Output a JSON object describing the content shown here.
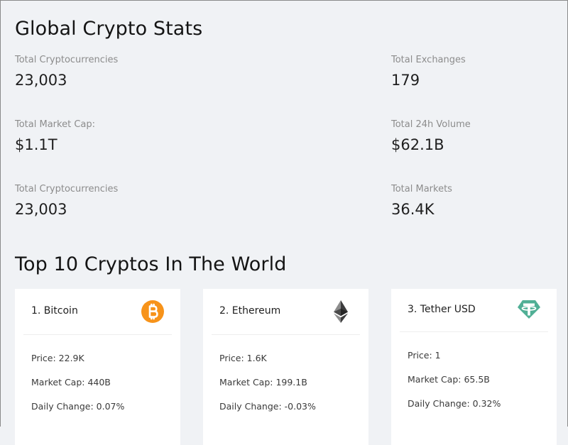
{
  "global": {
    "title": "Global Crypto Stats",
    "stats": [
      {
        "label": "Total Cryptocurrencies",
        "value": "23,003"
      },
      {
        "label": "Total Exchanges",
        "value": "179"
      },
      {
        "label": "Total Market Cap:",
        "value": "$1.1T"
      },
      {
        "label": "Total 24h Volume",
        "value": "$62.1B"
      },
      {
        "label": "Total Cryptocurrencies",
        "value": "23,003"
      },
      {
        "label": "Total Markets",
        "value": "36.4K"
      }
    ]
  },
  "top": {
    "title": "Top 10 Cryptos In The World",
    "cards": [
      {
        "name": "1. Bitcoin",
        "icon": "bitcoin-icon",
        "icon_color": "#f7931a",
        "price": "Price: 22.9K",
        "market_cap": "Market Cap: 440B",
        "daily_change": "Daily Change: 0.07%"
      },
      {
        "name": "2. Ethereum",
        "icon": "ethereum-icon",
        "icon_color": "#343434",
        "price": "Price: 1.6K",
        "market_cap": "Market Cap: 199.1B",
        "daily_change": "Daily Change: -0.03%"
      },
      {
        "name": "3. Tether USD",
        "icon": "tether-icon",
        "icon_color": "#50af95",
        "price": "Price: 1",
        "market_cap": "Market Cap: 65.5B",
        "daily_change": "Daily Change: 0.32%"
      }
    ]
  }
}
